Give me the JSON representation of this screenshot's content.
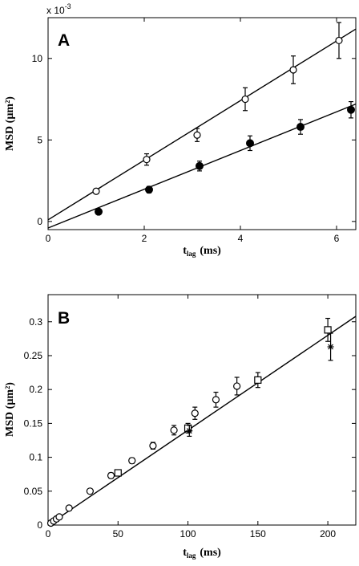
{
  "chart_data": [
    {
      "panel": "A",
      "type": "scatter",
      "xlabel_main": "t",
      "xlabel_sub": "lag",
      "xlabel_unit": "(ms)",
      "ylabel": "MSD  (µm²)",
      "multiplier": "x 10",
      "multiplier_exp": "-3",
      "xlim": [
        0,
        6.4
      ],
      "ylim": [
        -0.5,
        12.5
      ],
      "xticks": [
        0,
        2,
        4,
        6
      ],
      "yticks": [
        0,
        5,
        10
      ],
      "grid": false,
      "series": [
        {
          "marker": "open-circle",
          "x": [
            1.0,
            2.05,
            3.1,
            4.1,
            5.1,
            6.05
          ],
          "y": [
            1.85,
            3.8,
            5.3,
            7.5,
            9.3,
            11.1
          ],
          "err": [
            0.15,
            0.35,
            0.4,
            0.7,
            0.85,
            1.1
          ],
          "fit": {
            "x": [
              0,
              6.4
            ],
            "y": [
              0.1,
              11.8
            ]
          }
        },
        {
          "marker": "filled-circle",
          "x": [
            1.05,
            2.1,
            3.15,
            4.2,
            5.25,
            6.3
          ],
          "y": [
            0.6,
            1.95,
            3.4,
            4.8,
            5.8,
            6.85
          ],
          "err": [
            0.12,
            0.2,
            0.3,
            0.45,
            0.45,
            0.5
          ],
          "fit": {
            "x": [
              0,
              6.4
            ],
            "y": [
              -0.4,
              7.2
            ]
          }
        }
      ]
    },
    {
      "panel": "B",
      "type": "scatter",
      "xlabel_main": "t",
      "xlabel_sub": "lag",
      "xlabel_unit": "(ms)",
      "ylabel": "MSD  (µm²)",
      "xlim": [
        0,
        220
      ],
      "ylim": [
        0,
        0.34
      ],
      "xticks": [
        0,
        50,
        100,
        150,
        200
      ],
      "ytick_labels": [
        "0",
        "0.05",
        "0.1",
        "0.15",
        "0.2",
        "0.25",
        "0.3"
      ],
      "yticks": [
        0,
        0.05,
        0.1,
        0.15,
        0.2,
        0.25,
        0.3
      ],
      "grid": false,
      "series": [
        {
          "marker": "open-circle",
          "x": [
            2,
            4,
            6,
            8,
            15,
            30,
            45,
            60,
            75,
            90,
            105,
            120,
            135
          ],
          "y": [
            0.003,
            0.006,
            0.009,
            0.012,
            0.025,
            0.05,
            0.073,
            0.095,
            0.117,
            0.14,
            0.165,
            0.185,
            0.205
          ],
          "err": [
            0.001,
            0.001,
            0.001,
            0.002,
            0.002,
            0.003,
            0.004,
            0.004,
            0.005,
            0.007,
            0.009,
            0.011,
            0.013
          ]
        },
        {
          "marker": "open-square",
          "x": [
            50,
            100,
            150,
            200
          ],
          "y": [
            0.077,
            0.143,
            0.214,
            0.288
          ],
          "err": [
            0.004,
            0.007,
            0.011,
            0.017
          ]
        },
        {
          "marker": "star",
          "x": [
            101,
            202
          ],
          "y": [
            0.139,
            0.263
          ],
          "err": [
            0.008,
            0.02
          ]
        }
      ],
      "fit": {
        "x": [
          0,
          220
        ],
        "y": [
          0,
          0.308
        ]
      }
    }
  ]
}
